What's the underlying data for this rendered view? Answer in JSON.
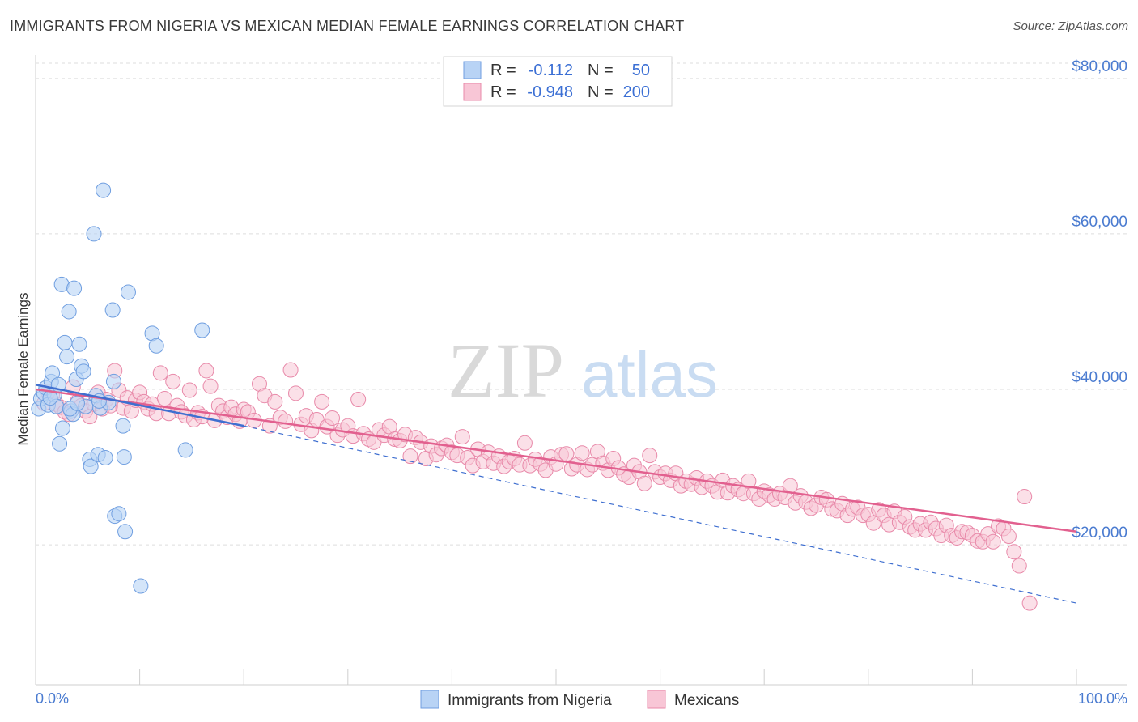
{
  "title": "IMMIGRANTS FROM NIGERIA VS MEXICAN MEDIAN FEMALE EARNINGS CORRELATION CHART",
  "source": "Source: ZipAtlas.com",
  "watermark": {
    "zip": "ZIP",
    "atlas": "atlas"
  },
  "colors": {
    "blue_fill": "#b8d3f5",
    "blue_stroke": "#6f9ee0",
    "blue_line": "#3f6fd0",
    "pink_fill": "#f8c6d6",
    "pink_stroke": "#e889a9",
    "pink_line": "#e2608f",
    "grid": "#dddddd",
    "tick_text": "#4a7bd0"
  },
  "legend": {
    "rows": [
      {
        "r_label": "R =",
        "r_value": "-0.112",
        "n_label": "N =",
        "n_value": "50"
      },
      {
        "r_label": "R =",
        "r_value": "-0.948",
        "n_label": "N =",
        "n_value": "200"
      }
    ]
  },
  "bottom_legend": {
    "series1": "Immigrants from Nigeria",
    "series2": "Mexicans"
  },
  "chart_data": {
    "type": "scatter",
    "title": "IMMIGRANTS FROM NIGERIA VS MEXICAN MEDIAN FEMALE EARNINGS CORRELATION CHART",
    "xlabel": "",
    "ylabel": "Median Female Earnings",
    "xlim": [
      0,
      100
    ],
    "ylim": [
      2000,
      83000
    ],
    "x_tick_labels": [
      "0.0%",
      "100.0%"
    ],
    "y_ticks": [
      20000,
      40000,
      60000,
      80000
    ],
    "y_tick_labels": [
      "$20,000",
      "$40,000",
      "$60,000",
      "$80,000"
    ],
    "grid": true,
    "series": [
      {
        "name": "Immigrants from Nigeria",
        "color": "#6f9ee0",
        "r": -0.112,
        "n": 50,
        "trend_solid": {
          "x": [
            0,
            20
          ],
          "y": [
            40600,
            35300
          ]
        },
        "trend_dashed": {
          "x": [
            20,
            100
          ],
          "y": [
            35300,
            12500
          ]
        },
        "points": [
          [
            0.3,
            37500
          ],
          [
            0.5,
            38800
          ],
          [
            0.8,
            39500
          ],
          [
            1.0,
            40200
          ],
          [
            1.2,
            38000
          ],
          [
            1.5,
            41000
          ],
          [
            1.6,
            42100
          ],
          [
            1.8,
            39300
          ],
          [
            2.0,
            37800
          ],
          [
            2.2,
            40600
          ],
          [
            2.3,
            33000
          ],
          [
            2.5,
            53500
          ],
          [
            2.6,
            35000
          ],
          [
            2.8,
            46000
          ],
          [
            3.0,
            44200
          ],
          [
            3.2,
            50000
          ],
          [
            3.4,
            37200
          ],
          [
            3.6,
            36800
          ],
          [
            3.7,
            53000
          ],
          [
            3.9,
            41300
          ],
          [
            4.2,
            45800
          ],
          [
            4.4,
            43000
          ],
          [
            4.6,
            42300
          ],
          [
            4.8,
            37800
          ],
          [
            5.2,
            31000
          ],
          [
            5.3,
            30100
          ],
          [
            5.6,
            60000
          ],
          [
            5.8,
            39200
          ],
          [
            6.0,
            31600
          ],
          [
            6.2,
            37600
          ],
          [
            6.5,
            65600
          ],
          [
            6.7,
            31200
          ],
          [
            7.0,
            38300
          ],
          [
            7.4,
            50200
          ],
          [
            7.5,
            41000
          ],
          [
            7.6,
            23700
          ],
          [
            8.0,
            24000
          ],
          [
            8.4,
            35300
          ],
          [
            8.5,
            31300
          ],
          [
            8.6,
            21700
          ],
          [
            8.9,
            52500
          ],
          [
            10.1,
            14700
          ],
          [
            11.2,
            47200
          ],
          [
            11.6,
            45600
          ],
          [
            14.4,
            32200
          ],
          [
            16.0,
            47600
          ],
          [
            1.4,
            38900
          ],
          [
            3.3,
            37500
          ],
          [
            4.0,
            38200
          ],
          [
            6.1,
            38500
          ]
        ]
      },
      {
        "name": "Mexicans",
        "color": "#e889a9",
        "r": -0.948,
        "n": 200,
        "trend_solid": {
          "x": [
            0,
            100
          ],
          "y": [
            40000,
            21700
          ]
        },
        "points": [
          [
            0.8,
            38200
          ],
          [
            1.2,
            39700
          ],
          [
            1.6,
            39300
          ],
          [
            2.0,
            38100
          ],
          [
            2.4,
            37700
          ],
          [
            2.8,
            37100
          ],
          [
            3.2,
            36800
          ],
          [
            3.6,
            40300
          ],
          [
            4.0,
            38400
          ],
          [
            4.4,
            37900
          ],
          [
            4.8,
            37200
          ],
          [
            5.2,
            36500
          ],
          [
            5.6,
            38100
          ],
          [
            6.0,
            39600
          ],
          [
            6.4,
            37500
          ],
          [
            6.8,
            38700
          ],
          [
            7.2,
            37900
          ],
          [
            7.6,
            42400
          ],
          [
            8.0,
            39900
          ],
          [
            8.4,
            37600
          ],
          [
            8.8,
            38900
          ],
          [
            9.2,
            37200
          ],
          [
            9.6,
            38600
          ],
          [
            10.0,
            39600
          ],
          [
            10.4,
            38400
          ],
          [
            10.8,
            37500
          ],
          [
            11.2,
            38100
          ],
          [
            11.6,
            36900
          ],
          [
            12.0,
            42100
          ],
          [
            12.4,
            38800
          ],
          [
            12.8,
            36900
          ],
          [
            13.2,
            41000
          ],
          [
            13.6,
            37900
          ],
          [
            14.0,
            37100
          ],
          [
            14.4,
            36600
          ],
          [
            14.8,
            39900
          ],
          [
            15.2,
            36100
          ],
          [
            15.6,
            37000
          ],
          [
            16.0,
            36500
          ],
          [
            16.4,
            42400
          ],
          [
            16.8,
            40400
          ],
          [
            17.2,
            36000
          ],
          [
            17.6,
            37900
          ],
          [
            18.0,
            37200
          ],
          [
            18.4,
            36400
          ],
          [
            18.8,
            37700
          ],
          [
            19.2,
            36800
          ],
          [
            19.6,
            35900
          ],
          [
            20.0,
            37400
          ],
          [
            20.4,
            37100
          ],
          [
            21.0,
            36000
          ],
          [
            21.5,
            40700
          ],
          [
            22.0,
            39200
          ],
          [
            22.5,
            35300
          ],
          [
            23.0,
            38400
          ],
          [
            23.5,
            36400
          ],
          [
            24.0,
            35900
          ],
          [
            24.5,
            42500
          ],
          [
            25.0,
            39500
          ],
          [
            25.5,
            35500
          ],
          [
            26.0,
            36600
          ],
          [
            26.5,
            34700
          ],
          [
            27.0,
            36100
          ],
          [
            27.5,
            38400
          ],
          [
            28.0,
            35200
          ],
          [
            28.5,
            36300
          ],
          [
            29.0,
            34100
          ],
          [
            29.5,
            34800
          ],
          [
            30.0,
            35300
          ],
          [
            30.5,
            34000
          ],
          [
            31.0,
            38700
          ],
          [
            31.5,
            34300
          ],
          [
            32.0,
            33600
          ],
          [
            32.5,
            33200
          ],
          [
            33.0,
            34800
          ],
          [
            33.5,
            34100
          ],
          [
            34.0,
            35200
          ],
          [
            34.5,
            33600
          ],
          [
            35.0,
            33400
          ],
          [
            35.5,
            34200
          ],
          [
            36.0,
            31400
          ],
          [
            36.5,
            33800
          ],
          [
            37.0,
            33200
          ],
          [
            37.5,
            31100
          ],
          [
            38.0,
            32700
          ],
          [
            38.5,
            31600
          ],
          [
            39.0,
            32400
          ],
          [
            39.5,
            32800
          ],
          [
            40.0,
            31900
          ],
          [
            40.5,
            31500
          ],
          [
            41.0,
            33900
          ],
          [
            41.5,
            31200
          ],
          [
            42.0,
            30200
          ],
          [
            42.5,
            32300
          ],
          [
            43.0,
            30700
          ],
          [
            43.5,
            31900
          ],
          [
            44.0,
            30500
          ],
          [
            44.5,
            31400
          ],
          [
            45.0,
            30100
          ],
          [
            45.5,
            30700
          ],
          [
            46.0,
            31100
          ],
          [
            46.5,
            30300
          ],
          [
            47.0,
            33100
          ],
          [
            47.5,
            30200
          ],
          [
            48.0,
            31000
          ],
          [
            48.5,
            30400
          ],
          [
            49.0,
            29600
          ],
          [
            49.5,
            31300
          ],
          [
            50.0,
            30400
          ],
          [
            50.5,
            31600
          ],
          [
            51.0,
            31700
          ],
          [
            51.5,
            29800
          ],
          [
            52.0,
            30300
          ],
          [
            52.5,
            31800
          ],
          [
            53.0,
            29700
          ],
          [
            53.5,
            30300
          ],
          [
            54.0,
            32000
          ],
          [
            54.5,
            30500
          ],
          [
            55.0,
            29600
          ],
          [
            55.5,
            31100
          ],
          [
            56.0,
            29900
          ],
          [
            56.5,
            29100
          ],
          [
            57.0,
            28700
          ],
          [
            57.5,
            30200
          ],
          [
            58.0,
            29400
          ],
          [
            58.5,
            27900
          ],
          [
            59.0,
            31500
          ],
          [
            59.5,
            29400
          ],
          [
            60.0,
            28700
          ],
          [
            60.5,
            29200
          ],
          [
            61.0,
            28300
          ],
          [
            61.5,
            29200
          ],
          [
            62.0,
            27600
          ],
          [
            62.5,
            28200
          ],
          [
            63.0,
            27800
          ],
          [
            63.5,
            28600
          ],
          [
            64.0,
            27400
          ],
          [
            64.5,
            28200
          ],
          [
            65.0,
            27600
          ],
          [
            65.5,
            26800
          ],
          [
            66.0,
            28300
          ],
          [
            66.5,
            26700
          ],
          [
            67.0,
            27600
          ],
          [
            67.5,
            27100
          ],
          [
            68.0,
            26600
          ],
          [
            68.5,
            28200
          ],
          [
            69.0,
            26600
          ],
          [
            69.5,
            25900
          ],
          [
            70.0,
            26900
          ],
          [
            70.5,
            26400
          ],
          [
            71.0,
            25900
          ],
          [
            71.5,
            26600
          ],
          [
            72.0,
            26100
          ],
          [
            72.5,
            27600
          ],
          [
            73.0,
            25400
          ],
          [
            73.5,
            26300
          ],
          [
            74.0,
            25500
          ],
          [
            74.5,
            24700
          ],
          [
            75.0,
            25100
          ],
          [
            75.5,
            26100
          ],
          [
            76.0,
            25800
          ],
          [
            76.5,
            24600
          ],
          [
            77.0,
            24400
          ],
          [
            77.5,
            25300
          ],
          [
            78.0,
            23800
          ],
          [
            78.5,
            24600
          ],
          [
            79.0,
            24800
          ],
          [
            79.5,
            23800
          ],
          [
            80.0,
            23900
          ],
          [
            80.5,
            22800
          ],
          [
            81.0,
            24500
          ],
          [
            81.5,
            23800
          ],
          [
            82.0,
            22600
          ],
          [
            82.5,
            24300
          ],
          [
            83.0,
            22900
          ],
          [
            83.5,
            23600
          ],
          [
            84.0,
            22300
          ],
          [
            84.5,
            21900
          ],
          [
            85.0,
            22700
          ],
          [
            85.5,
            21900
          ],
          [
            86.0,
            22900
          ],
          [
            86.5,
            22100
          ],
          [
            87.0,
            21200
          ],
          [
            87.5,
            22500
          ],
          [
            88.0,
            21200
          ],
          [
            88.5,
            20900
          ],
          [
            89.0,
            21700
          ],
          [
            89.5,
            21600
          ],
          [
            90.0,
            21200
          ],
          [
            90.5,
            20500
          ],
          [
            91.0,
            20400
          ],
          [
            91.5,
            21400
          ],
          [
            92.0,
            20400
          ],
          [
            92.5,
            22400
          ],
          [
            93.0,
            22100
          ],
          [
            93.5,
            21100
          ],
          [
            94.0,
            19100
          ],
          [
            94.5,
            17300
          ],
          [
            95.0,
            26200
          ],
          [
            95.5,
            12500
          ]
        ]
      }
    ]
  }
}
